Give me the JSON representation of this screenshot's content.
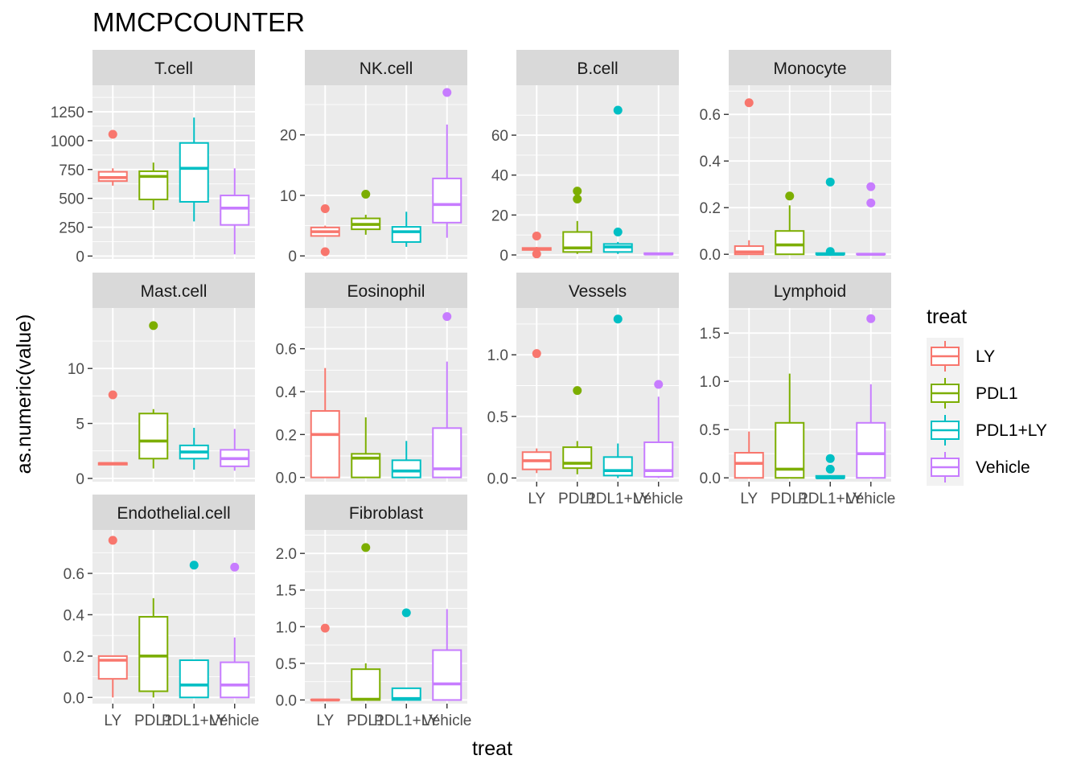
{
  "chart_data": {
    "type": "boxplot",
    "title": "MMCPCOUNTER",
    "xlabel": "treat",
    "ylabel": "as.numeric(value)",
    "categories": [
      "LY",
      "PDL1",
      "PDL1+LY",
      "Vehicle"
    ],
    "legend": {
      "title": "treat",
      "placement": "right",
      "entries": [
        {
          "label": "LY",
          "color": "#F8766D"
        },
        {
          "label": "PDL1",
          "color": "#7CAE00"
        },
        {
          "label": "PDL1+LY",
          "color": "#00BFC4"
        },
        {
          "label": "Vehicle",
          "color": "#C77CFF"
        }
      ]
    },
    "grid": true,
    "panels": [
      {
        "name": "T.cell",
        "ylim": [
          -25,
          1480
        ],
        "yticks": [
          0,
          250,
          500,
          750,
          1000,
          1250
        ],
        "ytick_labels": [
          "0",
          "250",
          "500",
          "750",
          "1000",
          "1250"
        ],
        "boxes": [
          {
            "min": 610,
            "q1": 650,
            "median": 680,
            "q3": 730,
            "max": 760,
            "outliers": [
              1055
            ]
          },
          {
            "min": 400,
            "q1": 490,
            "median": 690,
            "q3": 735,
            "max": 810,
            "outliers": []
          },
          {
            "min": 300,
            "q1": 470,
            "median": 760,
            "q3": 980,
            "max": 1200,
            "outliers": []
          },
          {
            "min": 15,
            "q1": 270,
            "median": 415,
            "q3": 525,
            "max": 760,
            "outliers": []
          }
        ]
      },
      {
        "name": "NK.cell",
        "ylim": [
          -0.5,
          28.2
        ],
        "yticks": [
          0,
          10,
          20
        ],
        "ytick_labels": [
          "0",
          "10",
          "20"
        ],
        "boxes": [
          {
            "min": 3.2,
            "q1": 3.3,
            "median": 4.0,
            "q3": 4.7,
            "max": 5.0,
            "outliers": [
              7.8,
              0.7
            ]
          },
          {
            "min": 3.5,
            "q1": 4.4,
            "median": 5.2,
            "q3": 6.2,
            "max": 6.8,
            "outliers": [
              10.2
            ]
          },
          {
            "min": 1.5,
            "q1": 2.3,
            "median": 4.0,
            "q3": 4.8,
            "max": 7.3,
            "outliers": []
          },
          {
            "min": 3.0,
            "q1": 5.5,
            "median": 8.5,
            "q3": 12.8,
            "max": 21.7,
            "outliers": [
              27.0
            ]
          }
        ]
      },
      {
        "name": "B.cell",
        "ylim": [
          -2,
          85
        ],
        "yticks": [
          0,
          20,
          40,
          60
        ],
        "ytick_labels": [
          "0",
          "20",
          "40",
          "60"
        ],
        "boxes": [
          {
            "min": 2.0,
            "q1": 2.5,
            "median": 3.0,
            "q3": 3.5,
            "max": 4.0,
            "outliers": [
              9.5,
              0.5
            ]
          },
          {
            "min": 0.5,
            "q1": 1.5,
            "median": 3.5,
            "q3": 11.5,
            "max": 17.0,
            "outliers": [
              32.0,
              28.0
            ]
          },
          {
            "min": 0.5,
            "q1": 1.5,
            "median": 4.0,
            "q3": 5.5,
            "max": 6.5,
            "outliers": [
              72.5,
              11.5
            ]
          },
          {
            "min": 0,
            "q1": 0.3,
            "median": 0.5,
            "q3": 0.9,
            "max": 1.2,
            "outliers": []
          }
        ]
      },
      {
        "name": "Monocyte",
        "ylim": [
          -0.02,
          0.725
        ],
        "yticks": [
          0.0,
          0.2,
          0.4,
          0.6
        ],
        "ytick_labels": [
          "0.0",
          "0.2",
          "0.4",
          "0.6"
        ],
        "boxes": [
          {
            "min": 0,
            "q1": 0.0,
            "median": 0.01,
            "q3": 0.035,
            "max": 0.06,
            "outliers": [
              0.65
            ]
          },
          {
            "min": 0,
            "q1": 0.0,
            "median": 0.04,
            "q3": 0.1,
            "max": 0.21,
            "outliers": [
              0.25
            ]
          },
          {
            "min": 0,
            "q1": 0.0,
            "median": 0.0,
            "q3": 0.005,
            "max": 0.008,
            "outliers": [
              0.31,
              0.012
            ]
          },
          {
            "min": 0,
            "q1": 0.0,
            "median": 0.0,
            "q3": 0.002,
            "max": 0.003,
            "outliers": [
              0.29,
              0.22
            ]
          }
        ]
      },
      {
        "name": "Mast.cell",
        "ylim": [
          -0.3,
          15.5
        ],
        "yticks": [
          0,
          5,
          10
        ],
        "ytick_labels": [
          "0",
          "5",
          "10"
        ],
        "boxes": [
          {
            "min": 1.2,
            "q1": 1.25,
            "median": 1.35,
            "q3": 1.4,
            "max": 1.45,
            "outliers": [
              7.6
            ]
          },
          {
            "min": 0.9,
            "q1": 1.8,
            "median": 3.4,
            "q3": 5.9,
            "max": 6.3,
            "outliers": [
              13.9
            ]
          },
          {
            "min": 0.8,
            "q1": 1.8,
            "median": 2.4,
            "q3": 3.0,
            "max": 4.6,
            "outliers": []
          },
          {
            "min": 0.7,
            "q1": 1.1,
            "median": 1.8,
            "q3": 2.6,
            "max": 4.5,
            "outliers": []
          }
        ]
      },
      {
        "name": "Eosinophil",
        "ylim": [
          -0.02,
          0.79
        ],
        "yticks": [
          0.0,
          0.2,
          0.4,
          0.6
        ],
        "ytick_labels": [
          "0.0",
          "0.2",
          "0.4",
          "0.6"
        ],
        "boxes": [
          {
            "min": 0,
            "q1": 0.0,
            "median": 0.2,
            "q3": 0.31,
            "max": 0.51,
            "outliers": []
          },
          {
            "min": 0,
            "q1": 0.0,
            "median": 0.09,
            "q3": 0.11,
            "max": 0.28,
            "outliers": []
          },
          {
            "min": 0,
            "q1": 0.0,
            "median": 0.03,
            "q3": 0.08,
            "max": 0.17,
            "outliers": []
          },
          {
            "min": 0,
            "q1": 0.0,
            "median": 0.04,
            "q3": 0.23,
            "max": 0.54,
            "outliers": [
              0.75
            ]
          }
        ]
      },
      {
        "name": "Vessels",
        "ylim": [
          -0.03,
          1.38
        ],
        "yticks": [
          0.0,
          0.5,
          1.0
        ],
        "ytick_labels": [
          "0.0",
          "0.5",
          "1.0"
        ],
        "boxes": [
          {
            "min": 0.04,
            "q1": 0.07,
            "median": 0.14,
            "q3": 0.21,
            "max": 0.24,
            "outliers": [
              1.01
            ]
          },
          {
            "min": 0.03,
            "q1": 0.08,
            "median": 0.12,
            "q3": 0.25,
            "max": 0.3,
            "outliers": [
              0.71
            ]
          },
          {
            "min": 0,
            "q1": 0.02,
            "median": 0.06,
            "q3": 0.17,
            "max": 0.28,
            "outliers": [
              1.29
            ]
          },
          {
            "min": 0,
            "q1": 0.01,
            "median": 0.06,
            "q3": 0.29,
            "max": 0.66,
            "outliers": [
              0.76
            ]
          }
        ]
      },
      {
        "name": "Lymphoid",
        "ylim": [
          -0.04,
          1.76
        ],
        "yticks": [
          0.0,
          0.5,
          1.0,
          1.5
        ],
        "ytick_labels": [
          "0.0",
          "0.5",
          "1.0",
          "1.5"
        ],
        "boxes": [
          {
            "min": 0,
            "q1": 0.0,
            "median": 0.15,
            "q3": 0.26,
            "max": 0.48,
            "outliers": []
          },
          {
            "min": 0,
            "q1": 0.0,
            "median": 0.09,
            "q3": 0.57,
            "max": 1.08,
            "outliers": []
          },
          {
            "min": 0,
            "q1": 0.0,
            "median": 0.0,
            "q3": 0.02,
            "max": 0.03,
            "outliers": [
              0.2,
              0.09
            ]
          },
          {
            "min": 0,
            "q1": 0.0,
            "median": 0.25,
            "q3": 0.57,
            "max": 0.97,
            "outliers": [
              1.65
            ]
          }
        ]
      },
      {
        "name": "Endothelial.cell",
        "ylim": [
          -0.03,
          0.81
        ],
        "yticks": [
          0.0,
          0.2,
          0.4,
          0.6
        ],
        "ytick_labels": [
          "0.0",
          "0.2",
          "0.4",
          "0.6"
        ],
        "boxes": [
          {
            "min": 0.0,
            "q1": 0.09,
            "median": 0.18,
            "q3": 0.2,
            "max": 0.2,
            "outliers": [
              0.76
            ]
          },
          {
            "min": 0,
            "q1": 0.03,
            "median": 0.2,
            "q3": 0.39,
            "max": 0.48,
            "outliers": []
          },
          {
            "min": 0,
            "q1": 0.0,
            "median": 0.06,
            "q3": 0.18,
            "max": 0.18,
            "outliers": [
              0.64
            ]
          },
          {
            "min": 0,
            "q1": 0.0,
            "median": 0.06,
            "q3": 0.17,
            "max": 0.29,
            "outliers": [
              0.63
            ]
          }
        ]
      },
      {
        "name": "Fibroblast",
        "ylim": [
          -0.05,
          2.32
        ],
        "yticks": [
          0.0,
          0.5,
          1.0,
          1.5,
          2.0
        ],
        "ytick_labels": [
          "0.0",
          "0.5",
          "1.0",
          "1.5",
          "2.0"
        ],
        "boxes": [
          {
            "min": 0,
            "q1": 0.0,
            "median": 0.0,
            "q3": 0.005,
            "max": 0.01,
            "outliers": [
              0.98
            ]
          },
          {
            "min": 0,
            "q1": 0.0,
            "median": 0.01,
            "q3": 0.42,
            "max": 0.5,
            "outliers": [
              2.08
            ]
          },
          {
            "min": 0,
            "q1": 0.0,
            "median": 0.02,
            "q3": 0.16,
            "max": 0.16,
            "outliers": [
              1.19
            ]
          },
          {
            "min": 0,
            "q1": 0.0,
            "median": 0.22,
            "q3": 0.68,
            "max": 1.24,
            "outliers": []
          }
        ]
      }
    ]
  }
}
